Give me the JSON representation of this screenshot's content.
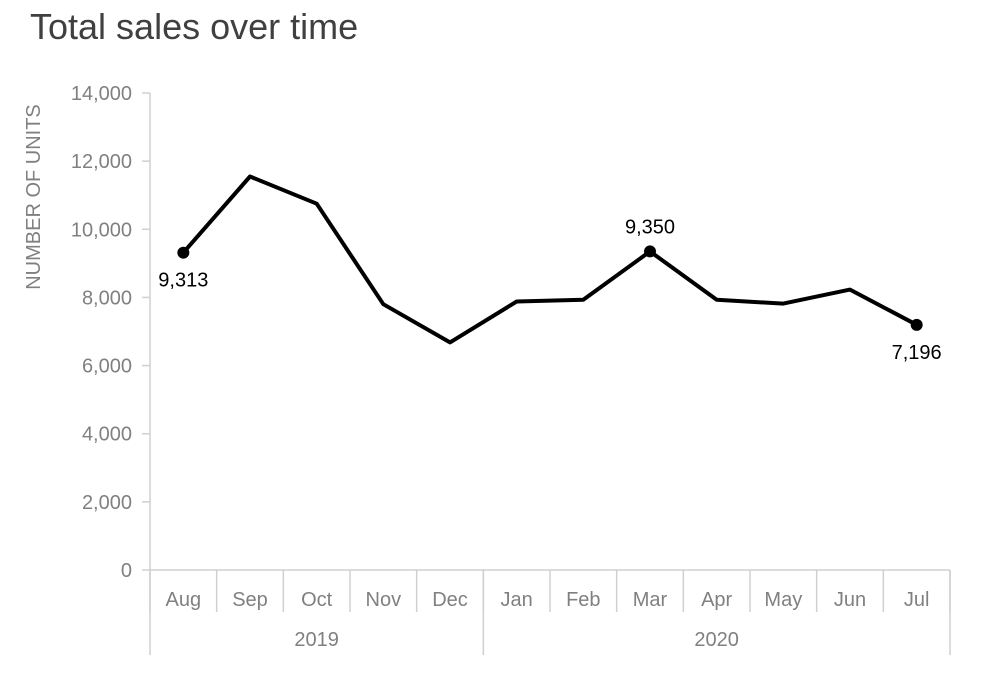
{
  "chart_data": {
    "type": "line",
    "title": "Total sales over time",
    "ylabel": "NUMBER OF UNITS",
    "xlabel": "",
    "ylim": [
      0,
      14000
    ],
    "yticks": [
      0,
      2000,
      4000,
      6000,
      8000,
      10000,
      12000,
      14000
    ],
    "ytick_labels": [
      "0",
      "2,000",
      "4,000",
      "6,000",
      "8,000",
      "10,000",
      "12,000",
      "14,000"
    ],
    "categories": [
      "Aug",
      "Sep",
      "Oct",
      "Nov",
      "Dec",
      "Jan",
      "Feb",
      "Mar",
      "Apr",
      "May",
      "Jun",
      "Jul"
    ],
    "groups": [
      {
        "label": "2019",
        "start": 0,
        "end": 4
      },
      {
        "label": "2020",
        "start": 5,
        "end": 11
      }
    ],
    "series": [
      {
        "values": [
          9313,
          11550,
          10750,
          7800,
          6680,
          7880,
          7930,
          9350,
          7930,
          7820,
          8230,
          7196
        ],
        "color": "#000000"
      }
    ],
    "annotations": [
      {
        "index": 0,
        "label": "9,313",
        "position": "below"
      },
      {
        "index": 7,
        "label": "9,350",
        "position": "above"
      },
      {
        "index": 11,
        "label": "7,196",
        "position": "below"
      }
    ],
    "grid": false,
    "legend": "none"
  }
}
